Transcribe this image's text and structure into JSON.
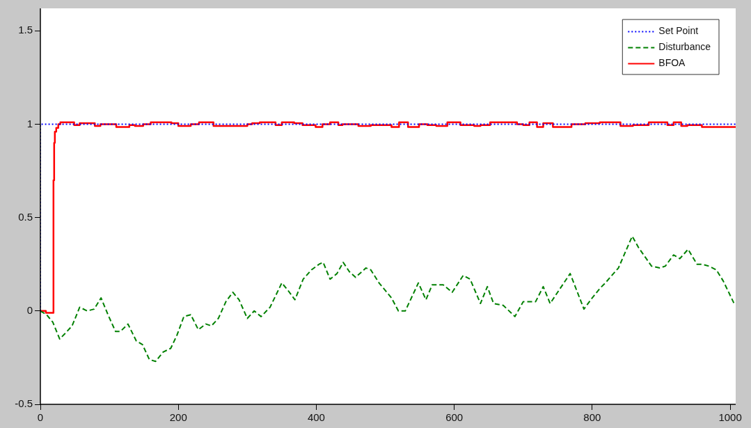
{
  "chart_data": {
    "type": "line",
    "xlim": [
      0,
      1008
    ],
    "ylim": [
      -0.5,
      1.62
    ],
    "xticks": [
      0,
      200,
      400,
      600,
      800,
      1000
    ],
    "yticks": [
      -0.5,
      0,
      0.5,
      1,
      1.5
    ],
    "grid": false,
    "legend": "top right",
    "series": [
      {
        "name": "Set Point",
        "type": "step",
        "color": "#0000ff",
        "line_style": "dotted",
        "x": [
          0,
          16,
          1008
        ],
        "values": [
          0,
          1,
          1
        ]
      },
      {
        "name": "Disturbance",
        "type": "line",
        "color": "#008000",
        "line_style": "dashed",
        "x": [
          0,
          9,
          18,
          28,
          36,
          46,
          57,
          68,
          78,
          88,
          98,
          109,
          116,
          127,
          139,
          148,
          158,
          167,
          178,
          189,
          198,
          208,
          218,
          229,
          240,
          248,
          258,
          269,
          279,
          288,
          300,
          310,
          320,
          333,
          350,
          359,
          369,
          381,
          393,
          404,
          410,
          420,
          430,
          439,
          448,
          457,
          472,
          479,
          491,
          509,
          519,
          529,
          548,
          559,
          568,
          584,
          597,
          613,
          623,
          638,
          648,
          657,
          671,
          688,
          700,
          718,
          729,
          739,
          768,
          788,
          800,
          811,
          819,
          838,
          858,
          867,
          886,
          898,
          906,
          918,
          927,
          939,
          952,
          959,
          969,
          980,
          990,
          1007
        ],
        "values": [
          0,
          -0.02,
          -0.06,
          -0.15,
          -0.12,
          -0.08,
          0.02,
          0,
          0.01,
          0.07,
          -0.02,
          -0.11,
          -0.11,
          -0.07,
          -0.16,
          -0.18,
          -0.26,
          -0.27,
          -0.22,
          -0.2,
          -0.13,
          -0.03,
          -0.02,
          -0.1,
          -0.07,
          -0.08,
          -0.04,
          0.05,
          0.1,
          0.06,
          -0.04,
          0,
          -0.03,
          0.02,
          0.15,
          0.11,
          0.06,
          0.17,
          0.22,
          0.25,
          0.26,
          0.17,
          0.2,
          0.26,
          0.21,
          0.18,
          0.23,
          0.22,
          0.15,
          0.07,
          0,
          0,
          0.15,
          0.06,
          0.14,
          0.14,
          0.1,
          0.19,
          0.17,
          0.04,
          0.13,
          0.04,
          0.03,
          -0.03,
          0.05,
          0.05,
          0.13,
          0.04,
          0.2,
          0.01,
          0.07,
          0.12,
          0.15,
          0.23,
          0.4,
          0.34,
          0.24,
          0.23,
          0.24,
          0.3,
          0.28,
          0.33,
          0.25,
          0.25,
          0.24,
          0.22,
          0.16,
          0.03
        ]
      },
      {
        "name": "BFOA",
        "type": "step",
        "color": "#ff0000",
        "line_style": "solid",
        "x": [
          0,
          8,
          10,
          19,
          20,
          21,
          23,
          26,
          29,
          49,
          57,
          79,
          87,
          110,
          129,
          137,
          149,
          160,
          190,
          200,
          218,
          230,
          251,
          280,
          300,
          307,
          318,
          341,
          350,
          368,
          380,
          399,
          409,
          420,
          432,
          438,
          461,
          479,
          509,
          520,
          533,
          549,
          561,
          574,
          590,
          609,
          629,
          638,
          652,
          691,
          700,
          709,
          720,
          729,
          743,
          770,
          790,
          811,
          841,
          859,
          882,
          909,
          918,
          929,
          938,
          959,
          1000,
          1008
        ],
        "values": [
          0,
          0,
          -0.01,
          -0.01,
          0.7,
          0.9,
          0.96,
          0.98,
          1,
          1.01,
          0.995,
          1.005,
          0.99,
          1,
          0.985,
          0.995,
          0.99,
          1,
          1.01,
          1.005,
          0.99,
          1,
          1.01,
          0.99,
          0.99,
          1,
          1.005,
          1.01,
          0.995,
          1.01,
          1.005,
          0.995,
          0.985,
          1,
          1.01,
          0.995,
          1,
          0.99,
          0.995,
          0.985,
          1.01,
          0.985,
          1,
          0.995,
          0.99,
          1.01,
          0.995,
          0.99,
          0.995,
          1.01,
          1,
          0.995,
          1.01,
          0.985,
          1.005,
          0.985,
          1,
          1.005,
          1.01,
          0.99,
          0.995,
          1.01,
          0.995,
          1.01,
          0.99,
          0.995,
          0.985,
          0.985
        ]
      }
    ]
  }
}
